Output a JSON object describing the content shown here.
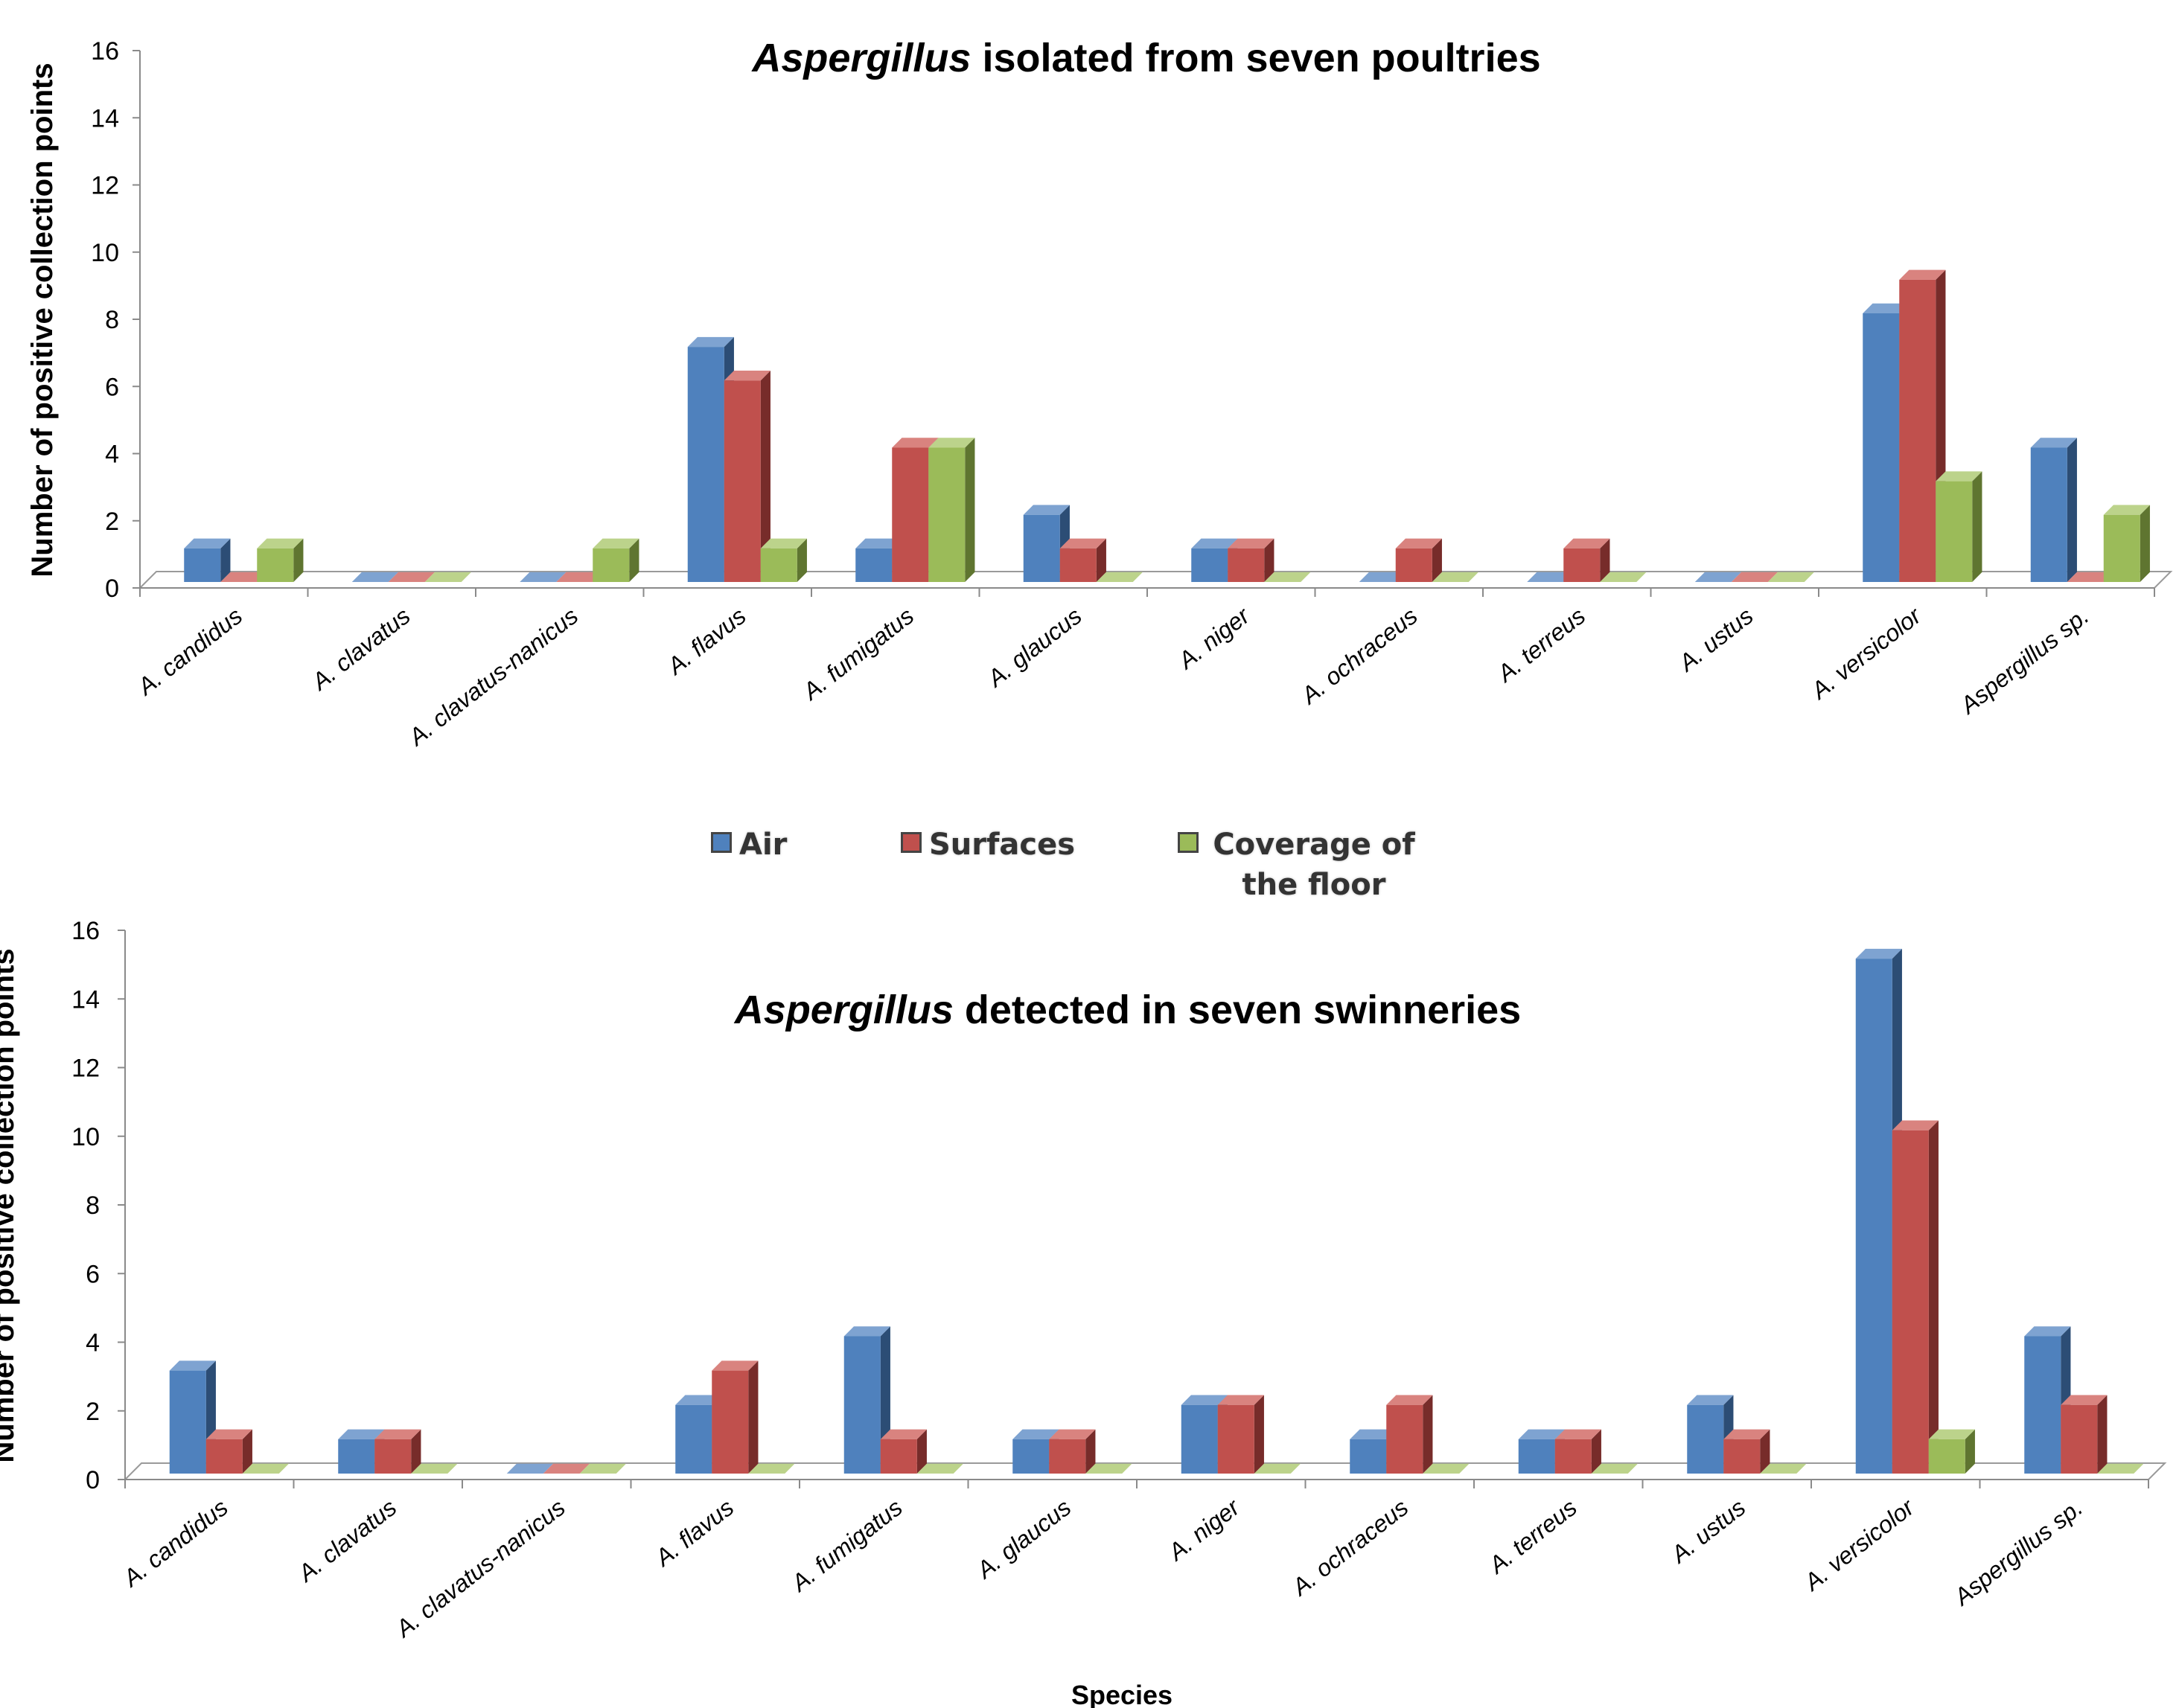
{
  "chart_data": [
    {
      "type": "bar",
      "title_italic": "Aspergillus",
      "title_rest": " isolated from seven poultries",
      "ylabel": "Number of positive collection points",
      "xlabel": "",
      "ylim": [
        0,
        16
      ],
      "yticks": [
        "0",
        "2",
        "4",
        "6",
        "8",
        "10",
        "12",
        "14",
        "16"
      ],
      "categories": [
        "A. candidus",
        "A. clavatus",
        "A. clavatus-nanicus",
        "A. flavus",
        "A. fumigatus",
        "A. glaucus",
        "A. niger",
        "A. ochraceus",
        "A. terreus",
        "A. ustus",
        "A. versicolor",
        "Aspergillus sp."
      ],
      "series": [
        {
          "name": "Air",
          "values": [
            1,
            0,
            0,
            7,
            1,
            2,
            1,
            0,
            0,
            0,
            8,
            4
          ]
        },
        {
          "name": "Surfaces",
          "values": [
            0,
            0,
            0,
            6,
            4,
            1,
            1,
            1,
            1,
            0,
            9,
            0
          ]
        },
        {
          "name": "Coverage of the floor",
          "values": [
            1,
            0,
            1,
            1,
            4,
            0,
            0,
            0,
            0,
            0,
            3,
            2
          ]
        }
      ],
      "grid": false
    },
    {
      "type": "bar",
      "title_italic": "Aspergillus",
      "title_rest": " detected in seven swinneries",
      "ylabel": "Number of positive collection points",
      "xlabel": "Species",
      "ylim": [
        0,
        16
      ],
      "yticks": [
        "0",
        "2",
        "4",
        "6",
        "8",
        "10",
        "12",
        "14",
        "16"
      ],
      "categories": [
        "A. candidus",
        "A. clavatus",
        "A. clavatus-nanicus",
        "A. flavus",
        "A. fumigatus",
        "A. glaucus",
        "A. niger",
        "A. ochraceus",
        "A. terreus",
        "A. ustus",
        "A. versicolor",
        "Aspergillus sp."
      ],
      "series": [
        {
          "name": "Air",
          "values": [
            3,
            1,
            0,
            2,
            4,
            1,
            2,
            1,
            1,
            2,
            15,
            4
          ]
        },
        {
          "name": "Surfaces",
          "values": [
            1,
            1,
            0,
            3,
            1,
            1,
            2,
            2,
            1,
            1,
            10,
            2
          ]
        },
        {
          "name": "Coverage of the floor",
          "values": [
            0,
            0,
            0,
            0,
            0,
            0,
            0,
            0,
            0,
            0,
            1,
            0
          ]
        }
      ],
      "grid": false
    }
  ],
  "legend": {
    "placement": "between-charts",
    "items": [
      {
        "label": "Air",
        "color": "#4f81bd"
      },
      {
        "label": "Surfaces",
        "color": "#c0504d"
      },
      {
        "label": "Coverage of the floor",
        "color": "#9bbb59"
      }
    ]
  },
  "colors": {
    "Air": {
      "front": "#4f81bd",
      "side": "#2c4d75",
      "top": "#7ea3d1"
    },
    "Surfaces": {
      "front": "#c0504d",
      "side": "#772c2a",
      "top": "#d9837f"
    },
    "Coverage of the floor": {
      "front": "#9bbb59",
      "side": "#5f7530",
      "top": "#bcd38b"
    }
  }
}
